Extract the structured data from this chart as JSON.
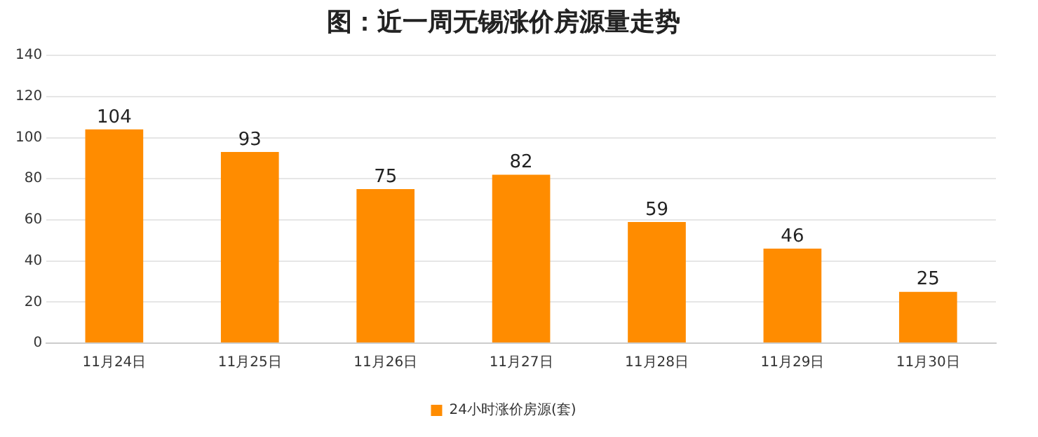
{
  "chart_data": {
    "type": "bar",
    "title": "图：近一周无锡涨价房源量走势",
    "categories": [
      "11月24日",
      "11月25日",
      "11月26日",
      "11月27日",
      "11月28日",
      "11月29日",
      "11月30日"
    ],
    "series": [
      {
        "name": "24小时涨价房源(套)",
        "color": "#ff8c00",
        "values": [
          104,
          93,
          75,
          82,
          59,
          46,
          25
        ]
      }
    ],
    "ylim": [
      0,
      140
    ],
    "yticks": [
      0,
      20,
      40,
      60,
      80,
      100,
      120,
      140
    ],
    "grid": "y",
    "legend": "bottom",
    "data_labels": true
  }
}
